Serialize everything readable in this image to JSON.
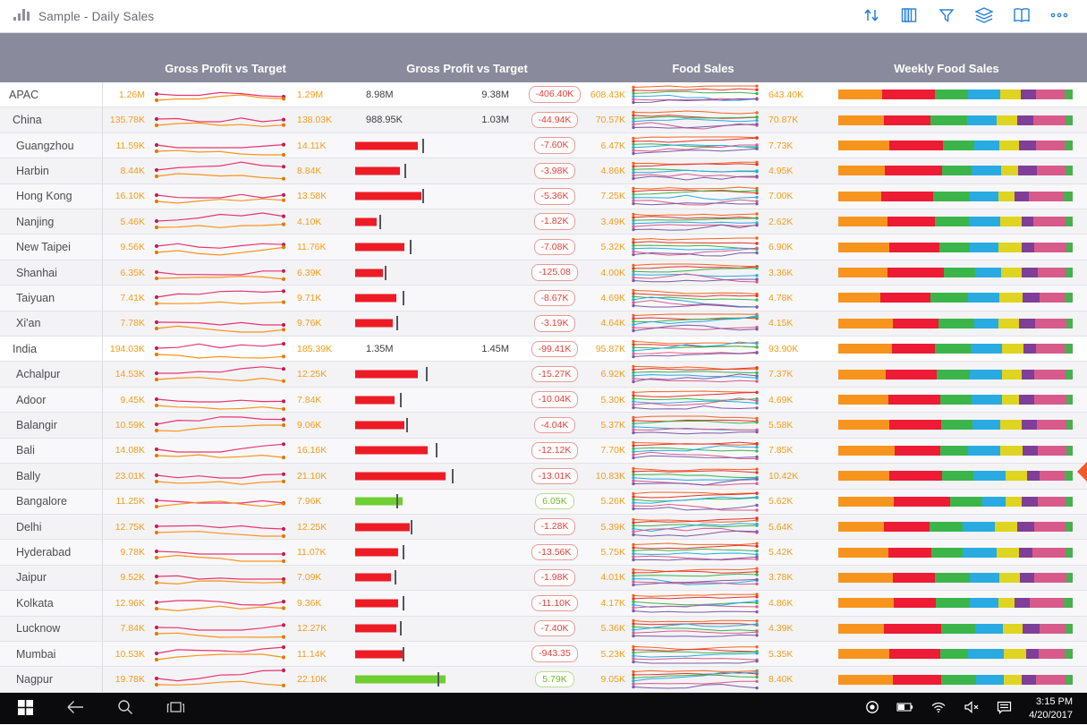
{
  "app": {
    "title": "Sample - Daily Sales"
  },
  "topbar": {
    "icons": [
      "sort",
      "table",
      "filter",
      "layers",
      "book",
      "more"
    ]
  },
  "header": {
    "columns": [
      "Gross Profit vs Target",
      "Gross Profit vs Target",
      "Food  Sales",
      "Weekly Food Sales"
    ]
  },
  "colors": {
    "header_band": "#8a8a9d",
    "value_orange": "#f59c1a",
    "bullet_red": "#ed1b24",
    "bullet_green": "#6fce31",
    "badge_neg": "#e5403b",
    "badge_pos": "#71b52c",
    "spark1_line1": "#e8356d",
    "spark1_line2": "#f7941e",
    "icon_blue": "#2980d9"
  },
  "spark2_colors": [
    "#f26522",
    "#e6332a",
    "#3ab54a",
    "#29abe2",
    "#d85a8b",
    "#7b5aa6"
  ],
  "stack": {
    "colors": [
      "#f7941e",
      "#ed1b34",
      "#3bb54a",
      "#29abe2",
      "#dfd41f",
      "#7f3f98",
      "#d85a8b",
      "#4bae4f"
    ],
    "shares": [
      20,
      20,
      13,
      12,
      8,
      6,
      12,
      3
    ]
  },
  "rows": [
    {
      "name": "APAC",
      "level": 0,
      "v1": "1.26M",
      "v2": "1.29M",
      "agg": {
        "a": "8.98M",
        "b": "9.38M"
      },
      "badge": "-406.40K",
      "tone": "neg",
      "v3": "608.43K",
      "v4": "643.40K"
    },
    {
      "name": "China",
      "level": 1,
      "v1": "135.78K",
      "v2": "138.03K",
      "agg": {
        "a": "988.95K",
        "b": "1.03M"
      },
      "badge": "-44.94K",
      "tone": "neg",
      "v3": "70.57K",
      "v4": "70.87K"
    },
    {
      "name": "Guangzhou",
      "level": 2,
      "v1": "11.59K",
      "v2": "14.11K",
      "bullet": {
        "pct": 38,
        "target": 42,
        "color": "red"
      },
      "badge": "-7.60K",
      "tone": "neg",
      "v3": "6.47K",
      "v4": "7.73K"
    },
    {
      "name": "Harbin",
      "level": 2,
      "v1": "8.44K",
      "v2": "8.84K",
      "bullet": {
        "pct": 27,
        "target": 31,
        "color": "red"
      },
      "badge": "-3.98K",
      "tone": "neg",
      "v3": "4.86K",
      "v4": "4.95K"
    },
    {
      "name": "Hong Kong",
      "level": 2,
      "v1": "16.10K",
      "v2": "13.58K",
      "bullet": {
        "pct": 40,
        "target": 42,
        "color": "red"
      },
      "badge": "-5.36K",
      "tone": "neg",
      "v3": "7.25K",
      "v4": "7.00K"
    },
    {
      "name": "Nanjing",
      "level": 2,
      "v1": "5.46K",
      "v2": "4.10K",
      "bullet": {
        "pct": 13,
        "target": 16,
        "color": "red"
      },
      "badge": "-1.82K",
      "tone": "neg",
      "v3": "3.49K",
      "v4": "2.62K"
    },
    {
      "name": "New Taipei",
      "level": 2,
      "v1": "9.56K",
      "v2": "11.76K",
      "bullet": {
        "pct": 30,
        "target": 34,
        "color": "red"
      },
      "badge": "-7.08K",
      "tone": "neg",
      "v3": "5.32K",
      "v4": "6.90K"
    },
    {
      "name": "Shanhai",
      "level": 2,
      "v1": "6.35K",
      "v2": "6.39K",
      "bullet": {
        "pct": 17,
        "target": 19,
        "color": "red"
      },
      "badge": "-125.08",
      "tone": "neg",
      "v3": "4.00K",
      "v4": "3.36K"
    },
    {
      "name": "Taiyuan",
      "level": 2,
      "v1": "7.41K",
      "v2": "9.71K",
      "bullet": {
        "pct": 25,
        "target": 30,
        "color": "red"
      },
      "badge": "-8.67K",
      "tone": "neg",
      "v3": "4.69K",
      "v4": "4.78K"
    },
    {
      "name": "Xi'an",
      "level": 2,
      "v1": "7.78K",
      "v2": "9.76K",
      "bullet": {
        "pct": 23,
        "target": 26,
        "color": "red"
      },
      "badge": "-3.19K",
      "tone": "neg",
      "v3": "4.64K",
      "v4": "4.15K"
    },
    {
      "name": "India",
      "level": 1,
      "v1": "194.03K",
      "v2": "185.39K",
      "agg": {
        "a": "1.35M",
        "b": "1.45M"
      },
      "badge": "-99.41K",
      "tone": "neg",
      "v3": "95.87K",
      "v4": "93.90K"
    },
    {
      "name": "Achalpur",
      "level": 2,
      "v1": "14.53K",
      "v2": "12.25K",
      "bullet": {
        "pct": 38,
        "target": 44,
        "color": "red"
      },
      "badge": "-15.27K",
      "tone": "neg",
      "v3": "6.92K",
      "v4": "7.37K"
    },
    {
      "name": "Adoor",
      "level": 2,
      "v1": "9.45K",
      "v2": "7.84K",
      "bullet": {
        "pct": 24,
        "target": 28,
        "color": "red"
      },
      "badge": "-10.04K",
      "tone": "neg",
      "v3": "5.30K",
      "v4": "4.69K"
    },
    {
      "name": "Balangir",
      "level": 2,
      "v1": "10.59K",
      "v2": "9.06K",
      "bullet": {
        "pct": 30,
        "target": 32,
        "color": "red"
      },
      "badge": "-4.04K",
      "tone": "neg",
      "v3": "5.37K",
      "v4": "5.58K"
    },
    {
      "name": "Bali",
      "level": 2,
      "v1": "14.08K",
      "v2": "16.16K",
      "bullet": {
        "pct": 44,
        "target": 50,
        "color": "red"
      },
      "badge": "-12.12K",
      "tone": "neg",
      "v3": "7.70K",
      "v4": "7.85K"
    },
    {
      "name": "Bally",
      "level": 2,
      "v1": "23.01K",
      "v2": "21.10K",
      "bullet": {
        "pct": 55,
        "target": 60,
        "color": "red"
      },
      "badge": "-13.01K",
      "tone": "neg",
      "v3": "10.83K",
      "v4": "10.42K"
    },
    {
      "name": "Bangalore",
      "level": 2,
      "v1": "11.25K",
      "v2": "7.96K",
      "bullet": {
        "pct": 29,
        "target": 26,
        "color": "green"
      },
      "badge": "6.05K",
      "tone": "pos",
      "v3": "5.26K",
      "v4": "5.62K"
    },
    {
      "name": "Delhi",
      "level": 2,
      "v1": "12.75K",
      "v2": "12.25K",
      "bullet": {
        "pct": 33,
        "target": 35,
        "color": "red"
      },
      "badge": "-1.28K",
      "tone": "neg",
      "v3": "5.39K",
      "v4": "5.64K"
    },
    {
      "name": "Hyderabad",
      "level": 2,
      "v1": "9.78K",
      "v2": "11.07K",
      "bullet": {
        "pct": 26,
        "target": 30,
        "color": "red"
      },
      "badge": "-13.56K",
      "tone": "neg",
      "v3": "5.75K",
      "v4": "5.42K"
    },
    {
      "name": "Jaipur",
      "level": 2,
      "v1": "9.52K",
      "v2": "7.09K",
      "bullet": {
        "pct": 22,
        "target": 25,
        "color": "red"
      },
      "badge": "-1.98K",
      "tone": "neg",
      "v3": "4.01K",
      "v4": "3.78K"
    },
    {
      "name": "Kolkata",
      "level": 2,
      "v1": "12.96K",
      "v2": "9.36K",
      "bullet": {
        "pct": 26,
        "target": 30,
        "color": "red"
      },
      "badge": "-11.10K",
      "tone": "neg",
      "v3": "4.17K",
      "v4": "4.86K"
    },
    {
      "name": "Lucknow",
      "level": 2,
      "v1": "7.84K",
      "v2": "12.27K",
      "bullet": {
        "pct": 25,
        "target": 28,
        "color": "red"
      },
      "badge": "-7.40K",
      "tone": "neg",
      "v3": "5.36K",
      "v4": "4.39K"
    },
    {
      "name": "Mumbai",
      "level": 2,
      "v1": "10.53K",
      "v2": "11.14K",
      "bullet": {
        "pct": 29,
        "target": 30,
        "color": "red"
      },
      "badge": "-943.35",
      "tone": "neg",
      "v3": "5.23K",
      "v4": "5.35K"
    },
    {
      "name": "Nagpur",
      "level": 2,
      "v1": "19.78K",
      "v2": "22.10K",
      "bullet": {
        "pct": 55,
        "target": 51,
        "color": "green"
      },
      "badge": "5.79K",
      "tone": "pos",
      "v3": "9.05K",
      "v4": "8.40K"
    }
  ],
  "taskbar": {
    "time": "3:15 PM",
    "date": "4/20/2017"
  }
}
